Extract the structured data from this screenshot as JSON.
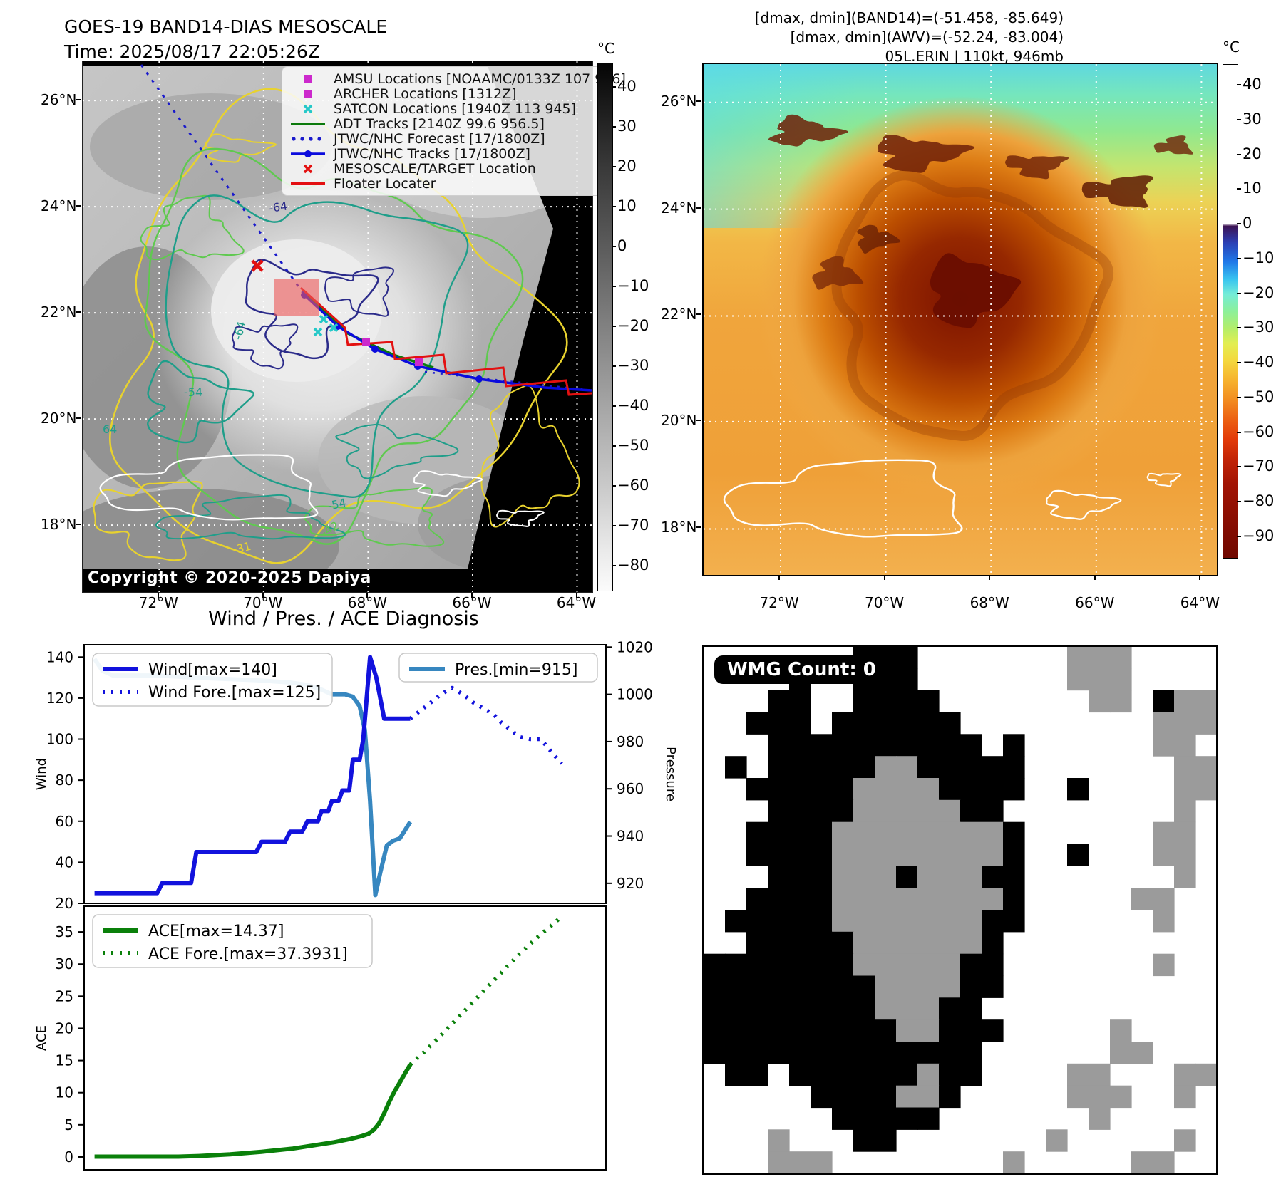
{
  "left_panel": {
    "title_line1": "GOES-19 BAND14-DIAS MESOSCALE",
    "title_line2": "Time: 2025/08/17 22:05:26Z",
    "copyright": "Copyright © 2020-2025 Dapiya",
    "lat_ticks": [
      "26°N",
      "24°N",
      "22°N",
      "20°N",
      "18°N"
    ],
    "lon_ticks": [
      "72°W",
      "70°W",
      "68°W",
      "66°W",
      "64°W"
    ],
    "colorbar": {
      "unit": "°C",
      "ticks": [
        40,
        30,
        20,
        10,
        0,
        -10,
        -20,
        -30,
        -40,
        -50,
        -60,
        -70,
        -80
      ]
    },
    "legend_items": [
      {
        "type": "square",
        "color": "#cc29cc",
        "label": "AMSU Locations [NOAAMC/0133Z 107 946]"
      },
      {
        "type": "square",
        "color": "#cc29cc",
        "label": "ARCHER Locations [1312Z]"
      },
      {
        "type": "x",
        "color": "#25c8c8",
        "label": "SATCON Locations [1940Z 113 945]"
      },
      {
        "type": "line",
        "color": "#0c7a0c",
        "label": "ADT Tracks [2140Z 99.6 956.5]"
      },
      {
        "type": "dotted",
        "color": "#1a1acc",
        "label": "JTWC/NHC Forecast [17/1800Z]"
      },
      {
        "type": "line-dot",
        "color": "#0b0bdd",
        "label": "JTWC/NHC Tracks [17/1800Z]"
      },
      {
        "type": "x",
        "color": "#e31111",
        "label": "MESOSCALE/TARGET Location"
      },
      {
        "type": "line",
        "color": "#e31111",
        "label": "Floater Locater"
      }
    ],
    "contour_labels": [
      {
        "text": "-64",
        "color": "#2b2b8a"
      },
      {
        "text": "-64",
        "color": "#1f9e8a"
      },
      {
        "text": "-54",
        "color": "#1f9e8a"
      },
      {
        "text": "-54",
        "color": "#1f9e8a"
      },
      {
        "text": "-42",
        "color": "#5fc94f"
      },
      {
        "text": "-31",
        "color": "#e8d22e"
      },
      {
        "text": "64",
        "color": "#1f9e8a"
      }
    ]
  },
  "right_panel": {
    "header_line1": "[dmax, dmin](BAND14)=(-51.458, -85.649)",
    "header_line2": "[dmax, dmin](AWV)=(-52.24, -83.004)",
    "header_line3": "05L.ERIN | 110kt, 946mb",
    "lat_ticks": [
      "26°N",
      "24°N",
      "22°N",
      "20°N",
      "18°N"
    ],
    "lon_ticks": [
      "72°W",
      "70°W",
      "68°W",
      "66°W",
      "64°W"
    ],
    "colorbar": {
      "unit": "°C",
      "ticks": [
        40,
        30,
        20,
        10,
        0,
        -10,
        -20,
        -30,
        -40,
        -50,
        -60,
        -70,
        -80,
        -90
      ]
    }
  },
  "charts": {
    "title": "Wind / Pres. / ACE Diagnosis"
  },
  "chart_data": [
    {
      "type": "line",
      "title": "Wind / Pres. / ACE Diagnosis",
      "xlabel": "",
      "ylabel_left": "Wind",
      "ylabel_right": "Pressure",
      "x_note": "time axis normalized 0-1, unlabeled in source",
      "y_left": {
        "ticks": [
          20,
          40,
          60,
          80,
          100,
          120,
          140
        ],
        "range": [
          20,
          146
        ]
      },
      "y_right": {
        "ticks": [
          920,
          940,
          960,
          980,
          1000,
          1020
        ],
        "range": [
          911.5,
          1021
        ]
      },
      "legend_position": "upper-left and upper-right",
      "series": [
        {
          "name": "Wind[max=140]",
          "axis": "left",
          "style": "solid",
          "color": "#1212dd",
          "x": [
            0.02,
            0.14,
            0.15,
            0.205,
            0.215,
            0.33,
            0.34,
            0.385,
            0.395,
            0.418,
            0.428,
            0.448,
            0.455,
            0.468,
            0.475,
            0.488,
            0.495,
            0.508,
            0.515,
            0.528,
            0.535,
            0.548,
            0.56,
            0.575,
            0.59,
            0.625
          ],
          "y": [
            25,
            25,
            30,
            30,
            45,
            45,
            50,
            50,
            55,
            55,
            60,
            60,
            65,
            65,
            70,
            70,
            75,
            75,
            90,
            90,
            100,
            140,
            130,
            110,
            110,
            110
          ]
        },
        {
          "name": "Wind Fore.[max=125]",
          "axis": "left",
          "style": "dotted",
          "color": "#1212dd",
          "x": [
            0.625,
            0.645,
            0.665,
            0.685,
            0.705,
            0.725,
            0.745,
            0.765,
            0.785,
            0.8,
            0.815,
            0.835,
            0.855,
            0.875,
            0.895,
            0.915
          ],
          "y": [
            110,
            114,
            118,
            122,
            125,
            122,
            118,
            115,
            112,
            108,
            105,
            101,
            100,
            100,
            94,
            88
          ]
        },
        {
          "name": "Pres.[min=915]",
          "axis": "right",
          "style": "solid",
          "color": "#3787c0",
          "x": [
            0.02,
            0.035,
            0.055,
            0.14,
            0.215,
            0.33,
            0.395,
            0.428,
            0.455,
            0.475,
            0.5,
            0.515,
            0.528,
            0.538,
            0.548,
            0.558,
            0.568,
            0.58,
            0.592,
            0.605,
            0.625
          ],
          "y": [
            1015,
            1010,
            1008,
            1008,
            1007,
            1006,
            1005,
            1004,
            1002,
            1000,
            1000,
            999,
            995,
            985,
            955,
            915,
            925,
            936,
            938,
            939,
            946
          ]
        }
      ]
    },
    {
      "type": "line",
      "ylabel_left": "ACE",
      "y_left": {
        "ticks": [
          0,
          5,
          10,
          15,
          20,
          25,
          30,
          35
        ],
        "range": [
          -2,
          39
        ]
      },
      "legend_position": "upper-left",
      "series": [
        {
          "name": "ACE[max=14.37]",
          "axis": "left",
          "style": "solid",
          "color": "#0a800a",
          "x": [
            0.02,
            0.1,
            0.18,
            0.22,
            0.28,
            0.34,
            0.4,
            0.44,
            0.48,
            0.51,
            0.53,
            0.545,
            0.555,
            0.565,
            0.575,
            0.585,
            0.595,
            0.605,
            0.615,
            0.625
          ],
          "y": [
            0.05,
            0.05,
            0.05,
            0.15,
            0.4,
            0.8,
            1.3,
            1.8,
            2.3,
            2.8,
            3.2,
            3.6,
            4.2,
            5.2,
            6.8,
            8.6,
            10.2,
            11.6,
            13.0,
            14.37
          ]
        },
        {
          "name": "ACE Fore.[max=37.3931]",
          "axis": "left",
          "style": "dotted",
          "color": "#0a800a",
          "x": [
            0.625,
            0.65,
            0.675,
            0.7,
            0.725,
            0.75,
            0.775,
            0.8,
            0.825,
            0.85,
            0.875,
            0.9,
            0.915
          ],
          "y": [
            14.37,
            16.2,
            18.2,
            20.3,
            22.4,
            24.5,
            26.6,
            28.7,
            30.8,
            32.8,
            34.6,
            36.3,
            37.39
          ]
        }
      ]
    }
  ],
  "wmg": {
    "badge": "WMG Count: 0",
    "colors": {
      "w": "#ffffff",
      "g": "#9b9b9b",
      "b": "#000000"
    },
    "grid": [
      "wwwwwwwbbbwwwwwwwgggwwww",
      "wwwwbwwbbbwwwwwwwgggwwww",
      "wwwbbwwbbbbwwwwwwwggwbgg",
      "wwbbbwbbbbbbwwwwwwwwwggg",
      "wwwbbbbbbbbbbwbwwwwwwggw",
      "wbwbbbbbggbbbbbwwwwwwwgg",
      "wwbbbbbggggbbbbwwbwwwwgg",
      "wwwbbbbgggggbbwwwwwwwwgw",
      "wwbbbbggggggggbwwwwwwggw",
      "wwbbbbggggggggbwwbwwwggw",
      "wwwbbbgggbgggbbwwwwwwwgw",
      "wwbbbbggggggggbwwwwwggww",
      "wbbbbbgggggggbbwwwwwwgww",
      "wwbbbbbggggggbwwwwwwwwww",
      "bbbbbbbgggggbbwwwwwwwgww",
      "bbbbbbbbggggbbwwwwwwwwww",
      "bbbbbbbbgggbbwwwwwwwwwww",
      "bbbbbbbbbggbbbwwwwwgwwww",
      "bbbbbbbbbbbbbwwwwwwggwww",
      "wbbwbbbbbbgbbwwwwggwwwgg",
      "wwwwwbbbbggbwwwwwgggwwgw",
      "wwwwwwbbbbbwwwwwwwgwwwww",
      "wwwgwwwbbwwwwwwwgwwwwwgw",
      "wwwgggwwwwwwwwgwwwwwggww"
    ]
  }
}
